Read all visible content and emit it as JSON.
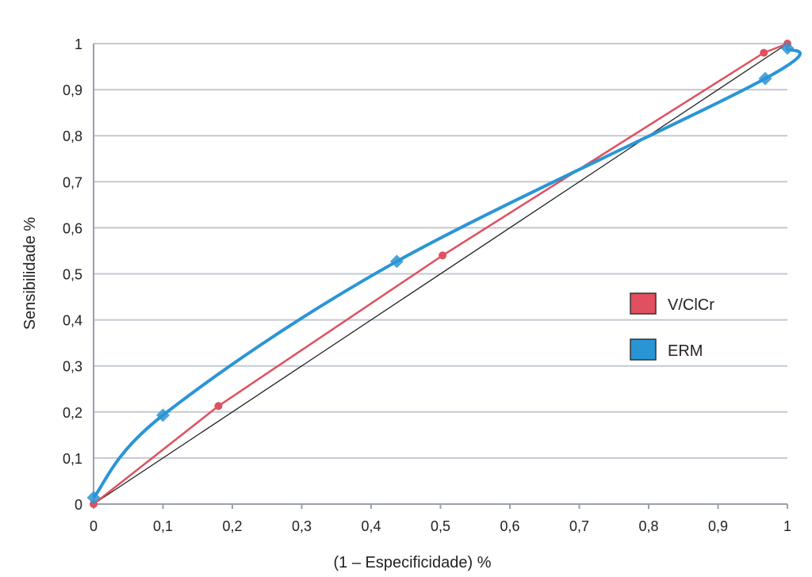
{
  "chart_data": {
    "type": "line",
    "title": "",
    "xlabel": "(1 – Especificidade) %",
    "ylabel": "Sensibilidade %",
    "xlim": [
      0,
      1
    ],
    "ylim": [
      0,
      1
    ],
    "grid": "horizontal",
    "legend_position": "right-center",
    "x_tick_labels": [
      "0",
      "0,1",
      "0,2",
      "0,3",
      "0,4",
      "0,5",
      "0,6",
      "0,7",
      "0,8",
      "0,9",
      "1"
    ],
    "y_tick_labels": [
      "0",
      "0,1",
      "0,2",
      "0,3",
      "0,4",
      "0,5",
      "0,6",
      "0,7",
      "0,8",
      "0,9",
      "1"
    ],
    "reference_line": {
      "x": [
        0,
        1
      ],
      "y": [
        0,
        1
      ],
      "color": "#222222"
    },
    "series": [
      {
        "name": "V/ClCr",
        "color": "#e0505e",
        "smooth": false,
        "x": [
          0,
          0.18,
          0.503,
          0.966,
          1
        ],
        "y": [
          0,
          0.213,
          0.54,
          0.98,
          1
        ]
      },
      {
        "name": "ERM",
        "color": "#2a95d5",
        "smooth": true,
        "x": [
          0,
          0.1,
          0.437,
          0.968,
          1
        ],
        "y": [
          0.014,
          0.193,
          0.527,
          0.924,
          0.99
        ]
      }
    ]
  }
}
